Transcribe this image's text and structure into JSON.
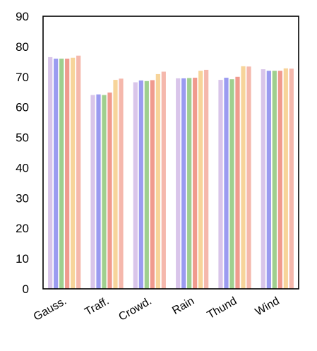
{
  "chart_data": {
    "type": "bar",
    "title": "",
    "xlabel": "",
    "ylabel": "",
    "ylim": [
      0,
      90
    ],
    "yticks": [
      0,
      10,
      20,
      30,
      40,
      50,
      60,
      70,
      80,
      90
    ],
    "grid": false,
    "categories": [
      "Gauss.",
      "Traff.",
      "Crowd.",
      "Rain",
      "Thund",
      "Wind"
    ],
    "series": [
      {
        "color": "#d9c5ea",
        "values": [
          76.5,
          64.0,
          68.2,
          69.5,
          69.0,
          72.5
        ]
      },
      {
        "color": "#9b9bf0",
        "values": [
          76.0,
          64.2,
          68.8,
          69.5,
          69.7,
          72.0
        ]
      },
      {
        "color": "#9fcf8f",
        "values": [
          76.0,
          64.0,
          68.6,
          69.6,
          69.2,
          72.0
        ]
      },
      {
        "color": "#f09a8e",
        "values": [
          76.0,
          64.8,
          68.9,
          69.7,
          70.0,
          72.0
        ]
      },
      {
        "color": "#f7d49a",
        "values": [
          76.3,
          69.0,
          70.9,
          72.0,
          73.5,
          72.8
        ]
      },
      {
        "color": "#f5b8ac",
        "values": [
          77.0,
          69.4,
          71.7,
          72.3,
          73.4,
          72.7
        ]
      }
    ]
  }
}
